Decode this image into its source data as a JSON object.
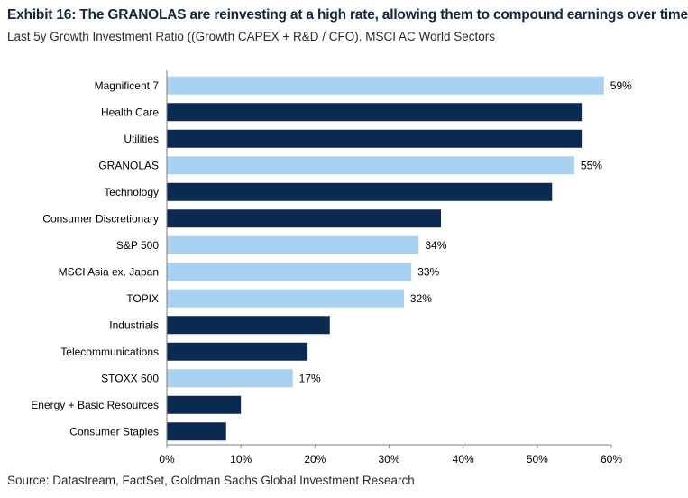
{
  "header": {
    "title": "Exhibit 16: The GRANOLAS are reinvesting at a high rate, allowing them to compound earnings over time",
    "subtitle": "Last 5y Growth Investment Ratio ((Growth CAPEX + R&D / CFO). MSCI AC World Sectors"
  },
  "footer": {
    "source": "Source: Datastream, FactSet, Goldman Sachs Global Investment Research"
  },
  "colors": {
    "dark_bar": "#0b2a52",
    "light_bar": "#a8d0f0",
    "axis": "#7f7f7f"
  },
  "chart_data": {
    "type": "bar",
    "orientation": "horizontal",
    "categories": [
      "Magnificent 7",
      "Health Care",
      "Utilities",
      "GRANOLAS",
      "Technology",
      "Consumer Discretionary",
      "S&P 500",
      "MSCI Asia ex. Japan",
      "TOPIX",
      "Industrials",
      "Telecommunications",
      "STOXX 600",
      "Energy + Basic Resources",
      "Consumer Staples"
    ],
    "values": [
      59,
      56,
      56,
      55,
      52,
      37,
      34,
      33,
      32,
      22,
      19,
      17,
      10,
      8
    ],
    "highlight": [
      true,
      false,
      false,
      true,
      false,
      false,
      true,
      true,
      true,
      false,
      false,
      true,
      false,
      false
    ],
    "data_labels": [
      "59%",
      "",
      "",
      "55%",
      "",
      "",
      "34%",
      "33%",
      "32%",
      "",
      "",
      "17%",
      "",
      ""
    ],
    "xlim": [
      0,
      60
    ],
    "xticks": [
      "0%",
      "10%",
      "20%",
      "30%",
      "40%",
      "50%",
      "60%"
    ],
    "grid": false
  }
}
